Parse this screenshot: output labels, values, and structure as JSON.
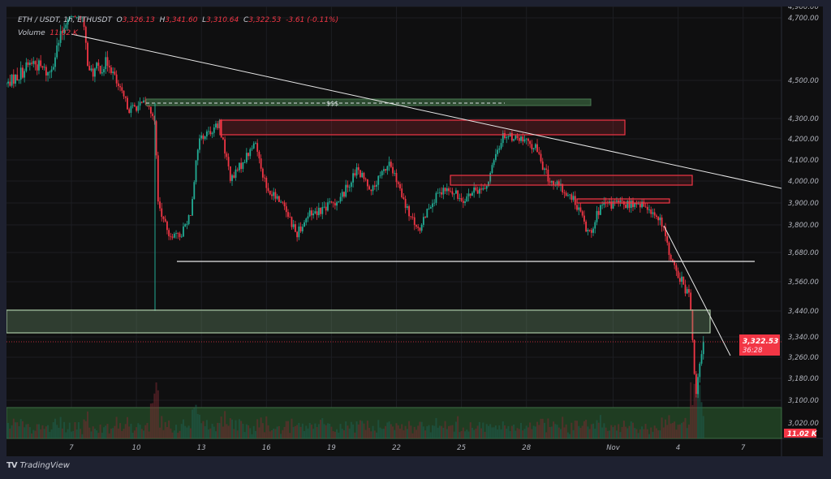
{
  "header": {
    "symbol_line": "ETH / USDT, 1h, ETHUSDT",
    "o_label": "O",
    "o": "3,326.13",
    "h_label": "H",
    "h": "3,341.60",
    "l_label": "L",
    "l": "3,310.64",
    "c_label": "C",
    "c": "3,322.53",
    "change": "-3.61 (-0.11%)",
    "volume_label": "Volume",
    "volume": "11.02 K"
  },
  "branding": {
    "logo_text": "TradingView"
  },
  "colors": {
    "up": "#22ab94",
    "down": "#f23645",
    "zone_green": "#3f5e3f",
    "zone_red": "#f23645",
    "background": "#0f0f10"
  },
  "chart_data": {
    "type": "candlestick",
    "symbol": "ETHUSDT",
    "interval": "1h",
    "y_tick_labels": [
      "4,900.00",
      "4,700.00",
      "4,500.00",
      "4,300.00",
      "4,200.00",
      "4,100.00",
      "4,000.00",
      "3,900.00",
      "3,800.00",
      "3,680.00",
      "3,560.00",
      "3,440.00",
      "3,340.00",
      "3,260.00",
      "3,180.00",
      "3,100.00",
      "3,020.00"
    ],
    "x_tick_labels": [
      "7",
      "10",
      "13",
      "16",
      "19",
      "22",
      "25",
      "28",
      "Nov",
      "4",
      "7"
    ],
    "last_price_label": "3,322.53",
    "countdown_label": "36:28",
    "volume_label": "11.02 K",
    "grid": true,
    "approx_price_path": [
      [
        "10-04 00",
        4480
      ],
      [
        "10-05 05",
        4560
      ],
      [
        "10-05 23",
        4520
      ],
      [
        "10-06 21",
        4720
      ],
      [
        "10-07 11",
        4720
      ],
      [
        "10-07 20",
        4520
      ],
      [
        "10-08 18",
        4560
      ],
      [
        "10-09 16",
        4350
      ],
      [
        "10-10 11",
        4380
      ],
      [
        "10-10 20",
        4300
      ],
      [
        "10-11 00",
        3900
      ],
      [
        "10-11 09",
        3780
      ],
      [
        "10-11 23",
        3740
      ],
      [
        "10-12 12",
        3860
      ],
      [
        "10-12 21",
        4200
      ],
      [
        "10-13 20",
        4270
      ],
      [
        "10-14 09",
        4000
      ],
      [
        "10-14 23",
        4100
      ],
      [
        "10-15 12",
        4180
      ],
      [
        "10-16 01",
        3950
      ],
      [
        "10-16 19",
        3900
      ],
      [
        "10-17 09",
        3760
      ],
      [
        "10-17 23",
        3850
      ],
      [
        "10-18 17",
        3880
      ],
      [
        "10-19 10",
        3920
      ],
      [
        "10-20 04",
        4050
      ],
      [
        "10-20 22",
        3960
      ],
      [
        "10-21 16",
        4090
      ],
      [
        "10-22 10",
        3880
      ],
      [
        "10-23 00",
        3770
      ],
      [
        "10-23 13",
        3900
      ],
      [
        "10-24 07",
        3960
      ],
      [
        "10-25 01",
        3920
      ],
      [
        "10-26 04",
        3980
      ],
      [
        "10-26 22",
        4220
      ],
      [
        "10-27 16",
        4200
      ],
      [
        "10-28 10",
        4160
      ],
      [
        "10-29 00",
        4010
      ],
      [
        "10-29 13",
        3970
      ],
      [
        "10-30 07",
        3900
      ],
      [
        "10-30 21",
        3760
      ],
      [
        "10-31 10",
        3880
      ],
      [
        "11-01 04",
        3900
      ],
      [
        "11-02 16",
        3880
      ],
      [
        "11-03 06",
        3800
      ],
      [
        "11-03 19",
        3620
      ],
      [
        "11-04 13",
        3500
      ],
      [
        "11-04 20",
        3100
      ],
      [
        "11-05 00",
        3250
      ],
      [
        "11-05 05",
        3322.53
      ]
    ],
    "annotations": {
      "liquidity_label": "$$$",
      "descending_trendline": true,
      "support_line_price": 3680,
      "demand_zone_price_range": [
        3360,
        3440
      ],
      "lower_demand_zone_price_range": [
        3000,
        3080
      ],
      "supply_zones_price_ranges": [
        [
          4230,
          4290
        ],
        [
          3990,
          4020
        ],
        [
          3905,
          3915
        ]
      ],
      "liquidity_zone_price_range": [
        4380,
        4400
      ]
    }
  }
}
